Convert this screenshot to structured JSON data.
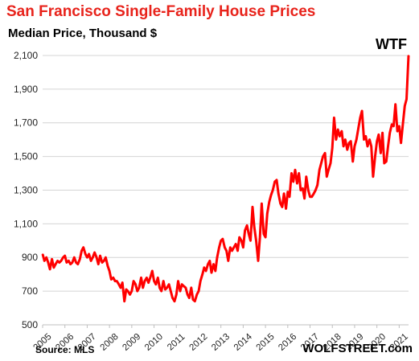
{
  "chart_data": {
    "type": "line",
    "title": "San Francisco Single-Family House Prices",
    "subtitle": "Median Price, Thousand $",
    "source": "Source: MLS",
    "brand": "WOLFSTREET.com",
    "annotation": "WTF",
    "ylim": [
      500,
      2200
    ],
    "y_ticks": [
      500,
      700,
      900,
      1100,
      1300,
      1500,
      1700,
      1900,
      2100
    ],
    "y_tick_labels": [
      "500",
      "700",
      "900",
      "1,100",
      "1,300",
      "1,500",
      "1,700",
      "1,900",
      "2,100"
    ],
    "x_ticks": [
      2005,
      2006,
      2007,
      2008,
      2009,
      2010,
      2011,
      2012,
      2013,
      2014,
      2015,
      2016,
      2017,
      2018,
      2019,
      2020,
      2021
    ],
    "xlim": [
      2005.0,
      2021.42
    ],
    "grid": true,
    "line_color": "#ff0000",
    "series": [
      {
        "x": [
          2005.0,
          2005.08,
          2005.17,
          2005.25,
          2005.33,
          2005.42,
          2005.5,
          2005.58,
          2005.67,
          2005.75,
          2005.83,
          2005.92,
          2006.0,
          2006.08,
          2006.17,
          2006.25,
          2006.33,
          2006.42,
          2006.5,
          2006.58,
          2006.67,
          2006.75,
          2006.83,
          2006.92,
          2007.0,
          2007.08,
          2007.17,
          2007.25,
          2007.33,
          2007.42,
          2007.5,
          2007.58,
          2007.67,
          2007.75,
          2007.83,
          2007.92,
          2008.0,
          2008.08,
          2008.17,
          2008.25,
          2008.33,
          2008.42,
          2008.5,
          2008.58,
          2008.67,
          2008.75,
          2008.83,
          2008.92,
          2009.0,
          2009.08,
          2009.17,
          2009.25,
          2009.33,
          2009.42,
          2009.5,
          2009.58,
          2009.67,
          2009.75,
          2009.83,
          2009.92,
          2010.0,
          2010.08,
          2010.17,
          2010.25,
          2010.33,
          2010.42,
          2010.5,
          2010.58,
          2010.67,
          2010.75,
          2010.83,
          2010.92,
          2011.0,
          2011.08,
          2011.17,
          2011.25,
          2011.33,
          2011.42,
          2011.5,
          2011.58,
          2011.67,
          2011.75,
          2011.83,
          2011.92,
          2012.0,
          2012.08,
          2012.17,
          2012.25,
          2012.33,
          2012.42,
          2012.5,
          2012.58,
          2012.67,
          2012.75,
          2012.83,
          2012.92,
          2013.0,
          2013.08,
          2013.17,
          2013.25,
          2013.33,
          2013.42,
          2013.5,
          2013.58,
          2013.67,
          2013.75,
          2013.83,
          2013.92,
          2014.0,
          2014.08,
          2014.17,
          2014.25,
          2014.33,
          2014.42,
          2014.5,
          2014.58,
          2014.67,
          2014.75,
          2014.83,
          2014.92,
          2015.0,
          2015.08,
          2015.17,
          2015.25,
          2015.33,
          2015.42,
          2015.5,
          2015.58,
          2015.67,
          2015.75,
          2015.83,
          2015.92,
          2016.0,
          2016.08,
          2016.17,
          2016.25,
          2016.33,
          2016.42,
          2016.5,
          2016.58,
          2016.67,
          2016.75,
          2016.83,
          2016.92,
          2017.0,
          2017.08,
          2017.17,
          2017.25,
          2017.33,
          2017.42,
          2017.5,
          2017.58,
          2017.67,
          2017.75,
          2017.83,
          2017.92,
          2018.0,
          2018.08,
          2018.17,
          2018.25,
          2018.33,
          2018.42,
          2018.5,
          2018.58,
          2018.67,
          2018.75,
          2018.83,
          2018.92,
          2019.0,
          2019.08,
          2019.17,
          2019.25,
          2019.33,
          2019.42,
          2019.5,
          2019.58,
          2019.67,
          2019.75,
          2019.83,
          2019.92,
          2020.0,
          2020.08,
          2020.17,
          2020.25,
          2020.33,
          2020.42,
          2020.5,
          2020.58,
          2020.67,
          2020.75,
          2020.83,
          2020.92,
          2021.0,
          2021.08,
          2021.17,
          2021.25,
          2021.33,
          2021.42
        ],
        "values": [
          920,
          880,
          900,
          870,
          830,
          890,
          840,
          860,
          880,
          870,
          880,
          900,
          910,
          870,
          880,
          860,
          870,
          900,
          870,
          860,
          890,
          940,
          960,
          920,
          900,
          920,
          880,
          900,
          930,
          900,
          860,
          910,
          870,
          880,
          900,
          850,
          820,
          770,
          780,
          760,
          760,
          740,
          720,
          750,
          640,
          710,
          700,
          680,
          700,
          760,
          740,
          700,
          720,
          780,
          720,
          760,
          780,
          750,
          780,
          820,
          760,
          740,
          780,
          720,
          700,
          760,
          710,
          720,
          740,
          700,
          660,
          640,
          680,
          760,
          700,
          740,
          730,
          720,
          680,
          660,
          720,
          650,
          640,
          680,
          700,
          760,
          800,
          840,
          820,
          860,
          880,
          810,
          860,
          820,
          900,
          960,
          1000,
          1010,
          960,
          940,
          880,
          960,
          940,
          960,
          980,
          940,
          1020,
          1000,
          960,
          1060,
          1090,
          1040,
          1000,
          1200,
          1080,
          1000,
          880,
          1020,
          1220,
          1040,
          1020,
          1160,
          1230,
          1270,
          1300,
          1350,
          1360,
          1280,
          1220,
          1200,
          1280,
          1190,
          1290,
          1260,
          1400,
          1350,
          1420,
          1340,
          1400,
          1300,
          1310,
          1250,
          1380,
          1300,
          1260,
          1260,
          1280,
          1300,
          1330,
          1420,
          1460,
          1500,
          1520,
          1380,
          1420,
          1460,
          1550,
          1730,
          1600,
          1660,
          1620,
          1650,
          1560,
          1600,
          1540,
          1580,
          1590,
          1470,
          1560,
          1600,
          1670,
          1730,
          1770,
          1600,
          1620,
          1560,
          1600,
          1560,
          1380,
          1500,
          1590,
          1630,
          1520,
          1640,
          1460,
          1470,
          1560,
          1640,
          1690,
          1680,
          1810,
          1650,
          1680,
          1580,
          1700,
          1800,
          1840,
          2100
        ]
      }
    ]
  }
}
